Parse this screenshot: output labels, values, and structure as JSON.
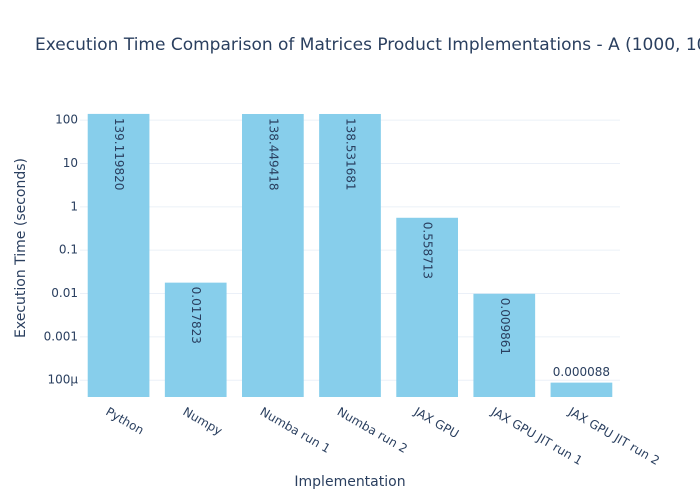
{
  "chart_data": {
    "type": "bar",
    "title": "Execution Time Comparison of Matrices Product Implementations - A (1000, 10",
    "x_label": "Implementation",
    "y_label": "Execution Time (seconds)",
    "categories": [
      "Python",
      "Numpy",
      "Numba run 1",
      "Numba run 2",
      "JAX GPU",
      "JAX GPU JIT run 1",
      "JAX GPU JIT run 2"
    ],
    "values": [
      139.11982,
      0.017823,
      138.449418,
      138.531681,
      0.558713,
      0.009861,
      8.8e-05
    ],
    "value_labels": [
      "139.119820",
      "0.017823",
      "138.449418",
      "138.531681",
      "0.558713",
      "0.009861",
      "0.000088"
    ],
    "color": "#87ceeb",
    "log_y": true,
    "ylim": [
      4.1e-05,
      146
    ],
    "yticks": [
      {
        "value": 0.0001,
        "label": "100µ"
      },
      0.001,
      0.01,
      0.1,
      1,
      10,
      100
    ],
    "grid": true
  }
}
